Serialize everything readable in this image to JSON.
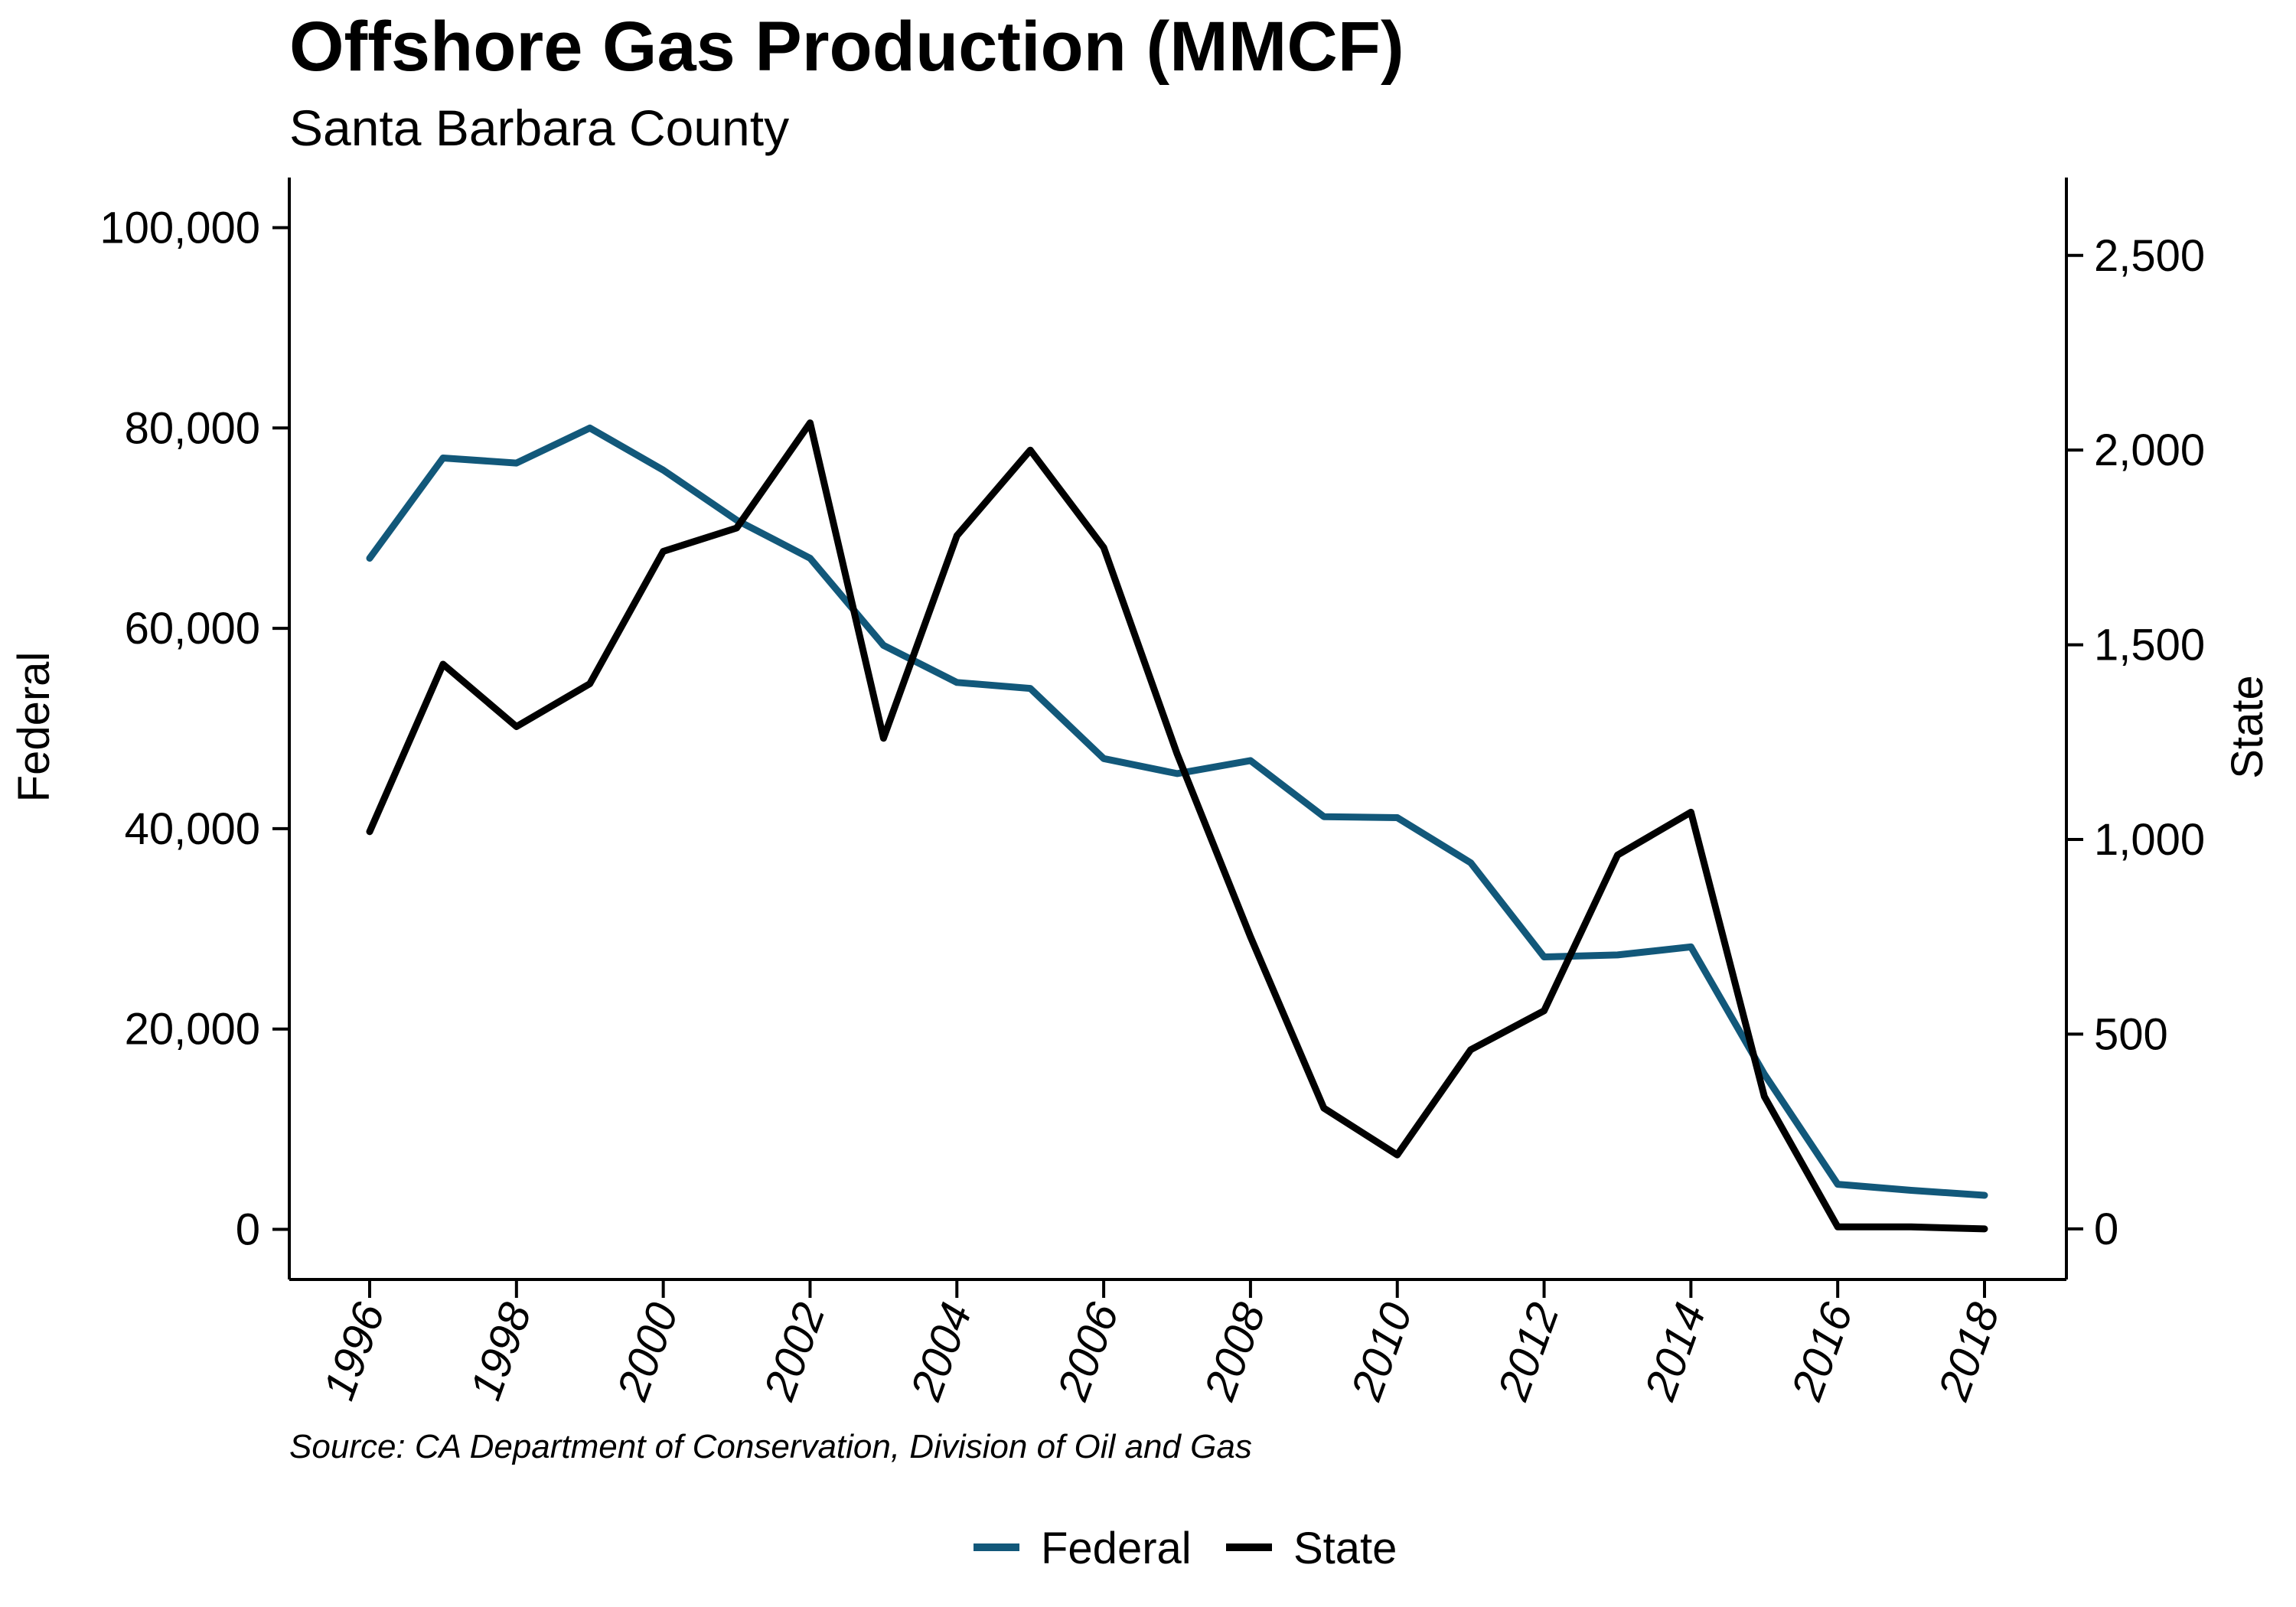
{
  "chart_data": {
    "type": "line",
    "title": "Offshore Gas Production (MMCF)",
    "subtitle": "Santa Barbara County",
    "source": "Source: CA Department of Conservation, Division of Oil and Gas",
    "x": [
      1996,
      1997,
      1998,
      1999,
      2000,
      2001,
      2002,
      2003,
      2004,
      2005,
      2006,
      2007,
      2008,
      2009,
      2010,
      2011,
      2012,
      2013,
      2014,
      2015,
      2016,
      2017,
      2018
    ],
    "x_ticks": [
      "1996",
      "1998",
      "2000",
      "2002",
      "2004",
      "2006",
      "2008",
      "2010",
      "2012",
      "2014",
      "2016",
      "2018"
    ],
    "xlim": [
      1996,
      2018
    ],
    "left_axis": {
      "label": "Federal",
      "ylim": [
        -5000,
        105000
      ],
      "ticks": [
        0,
        20000,
        40000,
        60000,
        80000,
        100000
      ],
      "tick_labels": [
        "0",
        "20,000",
        "40,000",
        "60,000",
        "80,000",
        "100,000"
      ]
    },
    "right_axis": {
      "label": "State",
      "ylim": [
        -130,
        2700
      ],
      "ticks": [
        0,
        500,
        1000,
        1500,
        2000,
        2500
      ],
      "tick_labels": [
        "0",
        "500",
        "1,000",
        "1,500",
        "2,000",
        "2,500"
      ]
    },
    "series": [
      {
        "name": "Federal",
        "axis": "left",
        "color": "#12587a",
        "values": [
          67000,
          77000,
          76500,
          80000,
          75800,
          70800,
          67000,
          58300,
          54600,
          54000,
          47000,
          45500,
          46800,
          41200,
          41100,
          36600,
          27200,
          27400,
          28200,
          15500,
          4500,
          3900,
          3400
        ]
      },
      {
        "name": "State",
        "axis": "right",
        "color": "#000000",
        "values": [
          1020,
          1450,
          1290,
          1400,
          1740,
          1800,
          2070,
          1260,
          1780,
          2000,
          1750,
          1220,
          750,
          310,
          190,
          460,
          560,
          960,
          1070,
          340,
          5,
          5,
          0
        ]
      }
    ],
    "legend": {
      "position": "bottom-center"
    },
    "grid": false
  }
}
